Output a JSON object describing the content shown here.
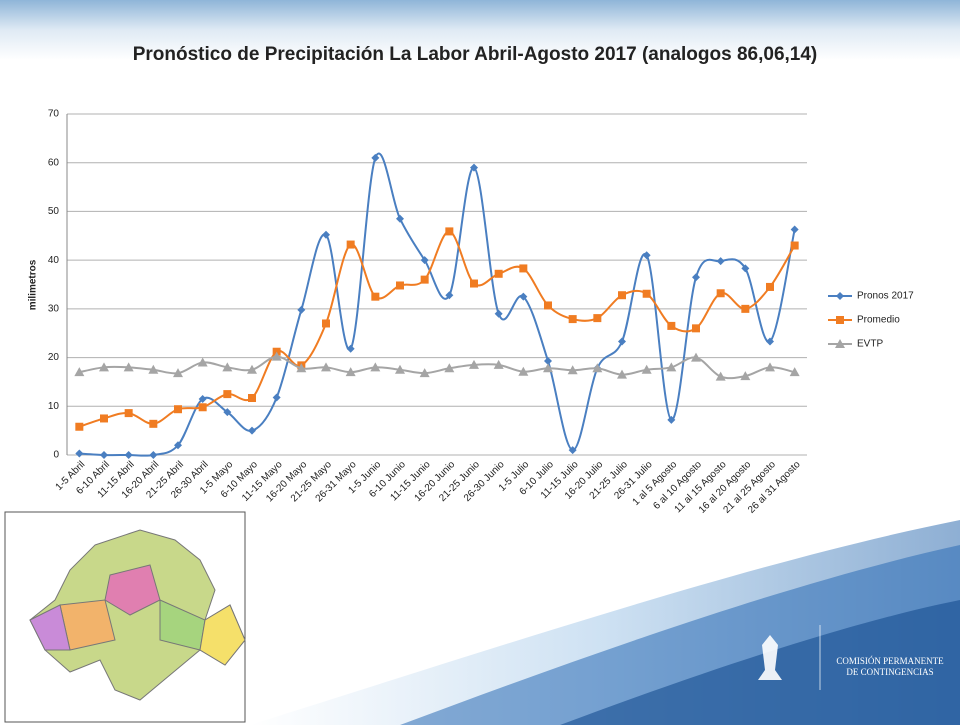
{
  "chart_data": {
    "type": "line",
    "title": "Pronóstico de Precipitación La Labor Abril-Agosto 2017 (analogos 86,06,14)",
    "y_label": "milimetros",
    "categories": [
      "1-5 Abril",
      "6-10 Abril",
      "11-15 Abril",
      "16-20 Abril",
      "21-25 Abril",
      "26-30 Abril",
      "1-5 Mayo",
      "6-10 Mayo",
      "11-15 Mayo",
      "16-20 Mayo",
      "21-25 Mayo",
      "26-31 Mayo",
      "1-5 Junio",
      "6-10 Junio",
      "11-15 Junio",
      "16-20 Junio",
      "21-25 Junio",
      "26-30 Junio",
      "1-5 Julio",
      "6-10 Julio",
      "11-15 Julio",
      "16-20 Julio",
      "21-25 Julio",
      "26-31 Julio",
      "1 al 5 Agosto",
      "6 al 10 Agosto",
      "11 al 15 Agosto",
      "16 al 20 Agosto",
      "21 al 25 Agosto",
      "26 al 31 Agosto"
    ],
    "series": [
      {
        "name": "Pronos 2017",
        "color": "#4a7fc1",
        "marker": "diamond",
        "values": [
          0.3,
          0,
          0,
          0,
          2,
          11.5,
          8.8,
          5,
          11.8,
          29.8,
          45.2,
          21.8,
          61,
          48.5,
          40,
          32.8,
          59,
          29,
          32.5,
          19.3,
          1,
          17.8,
          23.3,
          41,
          7.2,
          36.5,
          39.8,
          38.3,
          23.3,
          46.3
        ]
      },
      {
        "name": "Promedio",
        "color": "#f07c22",
        "marker": "square",
        "values": [
          5.8,
          7.5,
          8.6,
          6.4,
          9.4,
          9.8,
          12.5,
          11.7,
          21.2,
          18.4,
          27,
          43.2,
          32.5,
          34.8,
          36,
          45.9,
          35.2,
          37.2,
          38.3,
          30.7,
          27.9,
          28.1,
          32.8,
          33.1,
          26.5,
          26,
          33.2,
          30,
          34.5,
          43
        ]
      },
      {
        "name": "EVTP",
        "color": "#a5a5a5",
        "marker": "triangle",
        "values": [
          17,
          18,
          18,
          17.5,
          16.8,
          19,
          18,
          17.5,
          20.2,
          17.8,
          18,
          17,
          18,
          17.5,
          16.8,
          17.8,
          18.5,
          18.5,
          17.1,
          17.8,
          17.4,
          17.8,
          16.5,
          17.5,
          18,
          20,
          16.1,
          16.2,
          18,
          17
        ]
      }
    ],
    "ylim": [
      0,
      70
    ],
    "yticks": [
      0,
      10,
      20,
      30,
      40,
      50,
      60,
      70
    ],
    "grid": true,
    "smooth": true,
    "legend": "right"
  },
  "logo": {
    "line1": "COMISIÓN PERMANENTE",
    "line2": "DE CONTINGENCIAS"
  }
}
